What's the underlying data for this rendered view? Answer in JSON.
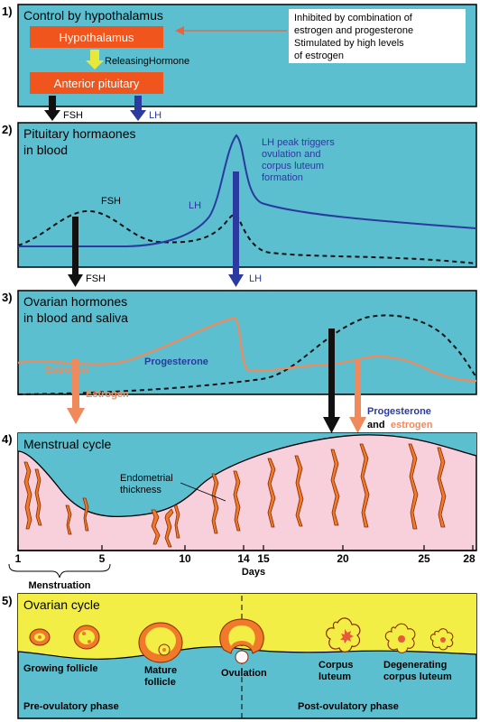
{
  "colors": {
    "panel_teal": "#5bbfd0",
    "hormone_box": "#f0551e",
    "arrow_black": "#111111",
    "arrow_lh": "#2a3a9e",
    "lh_curve": "#2a3a9e",
    "estrogen_orange": "#f08a5d",
    "endometrium_pink": "#f7d0dc",
    "gland_orange": "#f07a2a",
    "ovary_yellow": "#f2ee45",
    "releasing_arrow_yellow": "#e8e83a"
  },
  "panel1": {
    "number": "1)",
    "title": "Control by hypothalamus",
    "hypothalamus": "Hypothalamus",
    "releasing": "ReleasingHormone",
    "anterior_pituitary": "Anterior pituitary",
    "feedback_line1": "Inhibited by combination of",
    "feedback_line2": "estrogen and progesterone",
    "feedback_line3": "Stimulated by high levels",
    "feedback_line4": "of estrogen",
    "fsh": "FSH",
    "lh": "LH"
  },
  "panel2": {
    "number": "2)",
    "title_line1": "Pituitary hormaones",
    "title_line2": "in blood",
    "fsh_label": "FSH",
    "lh_label": "LH",
    "note_line1": "LH peak triggers",
    "note_line2": "ovulation and",
    "note_line3": "corpus luteum",
    "note_line4": "formation",
    "fsh_arrow": "FSH",
    "lh_arrow": "LH"
  },
  "panel3": {
    "number": "3)",
    "title_line1": "Ovarian hormones",
    "title_line2": "in blood and saliva",
    "estrogen_label": "Estrogen",
    "progesterone_label": "Progesterone",
    "estrogen_arrow": "Estrogen",
    "prog_arrow_line1": "Progesterone",
    "prog_arrow_and": "and",
    "prog_arrow_estrogen": "estrogen"
  },
  "panel4": {
    "number": "4)",
    "title": "Menstrual cycle",
    "thickness_line1": "Endometrial",
    "thickness_line2": "thickness",
    "day_ticks": [
      "1",
      "5",
      "10",
      "14",
      "15",
      "20",
      "25",
      "28"
    ],
    "axis_label": "Days",
    "menstruation": "Menstruation"
  },
  "panel5": {
    "number": "5)",
    "title": "Ovarian cycle",
    "growing_follicle": "Growing follicle",
    "mature_line1": "Mature",
    "mature_line2": "follicle",
    "ovulation": "Ovulation",
    "corpus_line1": "Corpus",
    "corpus_line2": "luteum",
    "degen_line1": "Degenerating",
    "degen_line2": "corpus luteum",
    "pre_phase": "Pre-ovulatory phase",
    "post_phase": "Post-ovulatory phase"
  }
}
